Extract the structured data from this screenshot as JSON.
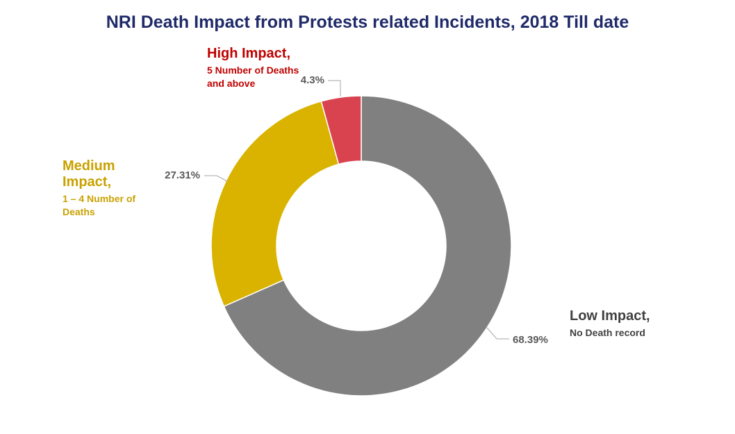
{
  "chart_data": {
    "type": "donut",
    "title": "NRI Death Impact from Protests related Incidents, 2018 Till date",
    "categories": [
      "Low Impact,",
      "Medium Impact,",
      "High Impact,"
    ],
    "descriptions": [
      "No Death record",
      "1 – 4 Number of Deaths",
      "5 Number of Deaths and above"
    ],
    "values": [
      68.39,
      27.31,
      4.3
    ],
    "value_labels": [
      "68.39%",
      "27.31%",
      "4.3%"
    ],
    "colors": [
      "#808080",
      "#d9b300",
      "#d9434f"
    ],
    "label_colors": [
      "#404040",
      "#c9a100",
      "#c00000"
    ]
  }
}
